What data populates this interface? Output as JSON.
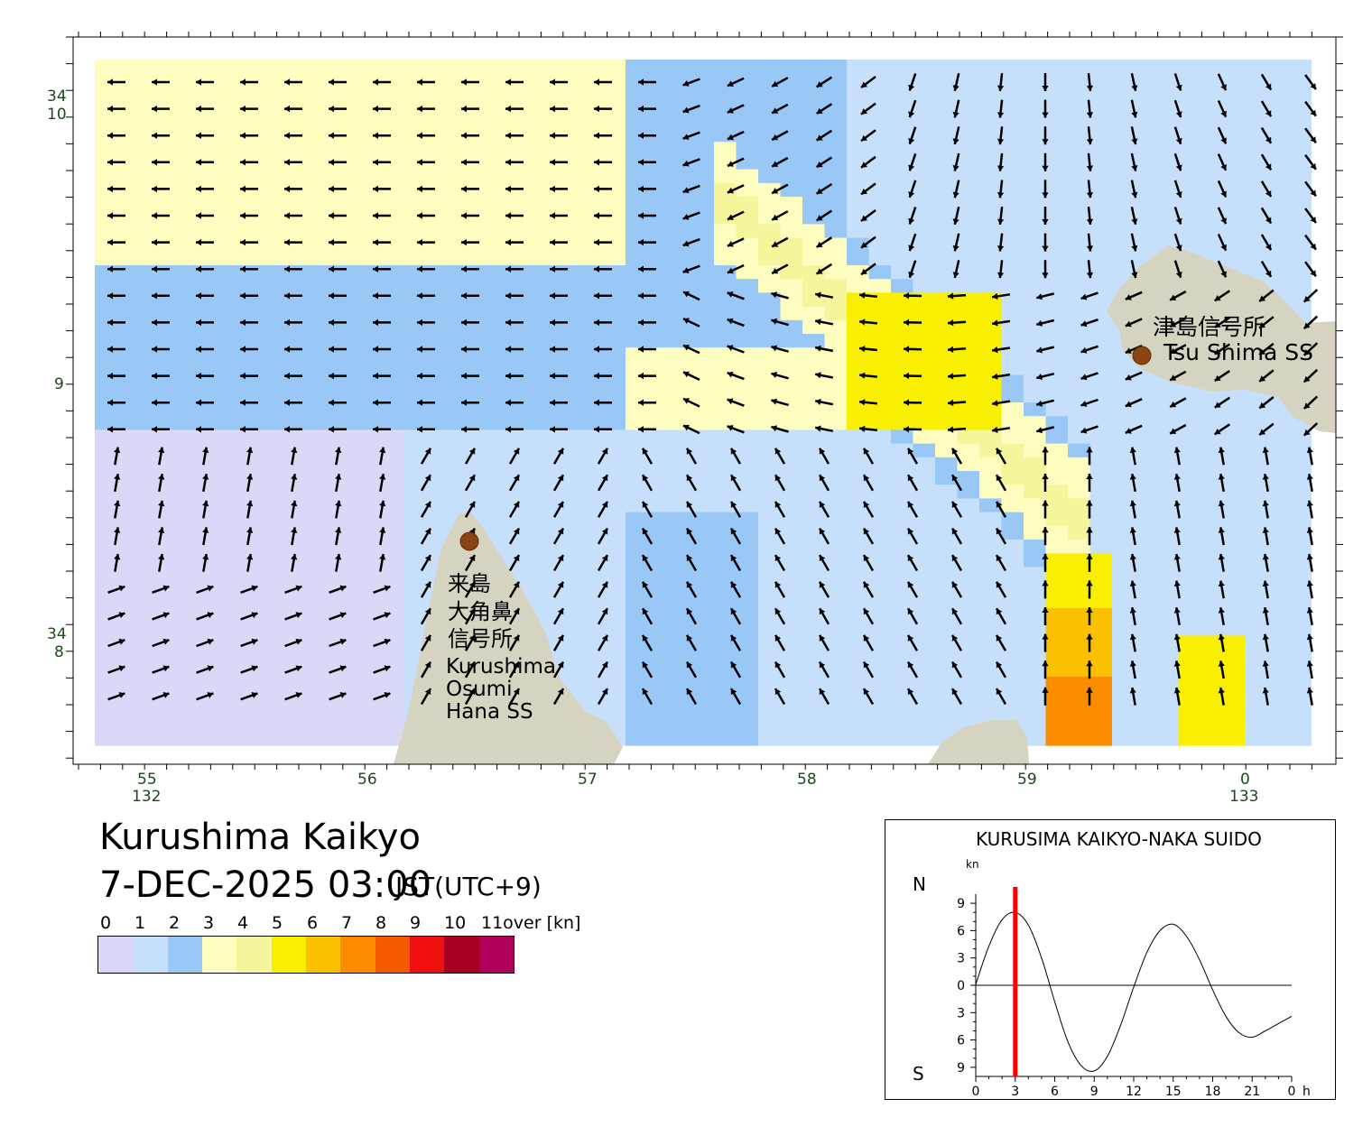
{
  "map": {
    "lat_labels": [
      {
        "deg": "34",
        "min": "10"
      },
      {
        "deg": "",
        "min": "9"
      },
      {
        "deg": "34",
        "min": "8"
      }
    ],
    "lon_labels": [
      {
        "min": "55",
        "deg": "132"
      },
      {
        "min": "56",
        "deg": ""
      },
      {
        "min": "57",
        "deg": ""
      },
      {
        "min": "58",
        "deg": ""
      },
      {
        "min": "59",
        "deg": ""
      },
      {
        "min": "0",
        "deg": "133"
      }
    ],
    "stations": [
      {
        "label_lines": [
          "津島信号所",
          "Tsu Shima SS"
        ]
      },
      {
        "label_lines": [
          "来島",
          "大角鼻",
          "信号所",
          "Kurushima",
          "Osumi",
          "Hana SS"
        ]
      }
    ],
    "colors": {
      "land": "#d6d3c1",
      "station_marker": "#8b4513",
      "label_text": "#1a4a1a"
    }
  },
  "header": {
    "location": "Kurushima Kaikyo",
    "datetime": "7-DEC-2025 03:00",
    "timezone": "JST(UTC+9)"
  },
  "legend": {
    "labels": [
      "0",
      "1",
      "2",
      "3",
      "4",
      "5",
      "6",
      "7",
      "8",
      "9",
      "10",
      "11over [kn]"
    ],
    "colors": [
      "#d9d9f7",
      "#c6e0fb",
      "#99c8f7",
      "#fdfdc0",
      "#f5f59c",
      "#f8f000",
      "#fbc000",
      "#fb8c00",
      "#f55a00",
      "#f01010",
      "#a80022",
      "#b0005a"
    ]
  },
  "tide_chart": {
    "title": "KURUSIMA KAIKYO-NAKA SUIDO",
    "unit": "kn",
    "north_label": "N",
    "south_label": "S",
    "y_tick_labels": [
      "9",
      "6",
      "3",
      "0",
      "3",
      "6",
      "9"
    ],
    "x_tick_labels": [
      "0",
      "3",
      "6",
      "9",
      "12",
      "15",
      "18",
      "21",
      "0",
      "h"
    ],
    "chart_data": {
      "type": "line",
      "xlabel": "h",
      "ylabel": "kn",
      "xlim": [
        0,
        24
      ],
      "ylim": [
        -10,
        10
      ],
      "x": [
        0,
        1,
        2,
        3,
        4,
        5,
        6,
        7,
        8,
        9,
        10,
        11,
        12,
        13,
        14,
        15,
        16,
        17,
        18,
        19,
        20,
        21,
        22,
        23,
        24
      ],
      "y": [
        0.1,
        4.3,
        7.2,
        8.0,
        6.6,
        3.0,
        -1.8,
        -6.2,
        -8.8,
        -9.4,
        -7.8,
        -4.4,
        -0.2,
        3.6,
        6.0,
        6.7,
        5.4,
        2.8,
        -0.5,
        -3.4,
        -5.2,
        -5.7,
        -5.0,
        -4.2,
        -3.4
      ],
      "current_time_h": 3.0,
      "current_time_color": "#ff0000"
    }
  }
}
